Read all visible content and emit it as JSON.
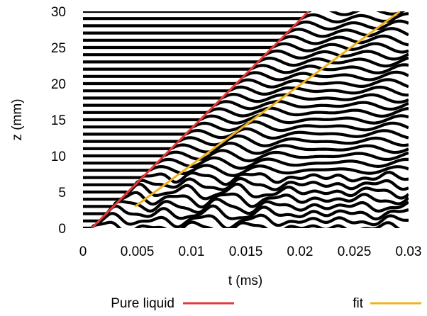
{
  "chart_data": {
    "type": "line",
    "title": "",
    "xlabel": "t (ms)",
    "ylabel": "z (mm)",
    "xlim": [
      0,
      0.03
    ],
    "ylim": [
      0,
      30
    ],
    "x_ticks": [
      "0",
      "0.005",
      "0.01",
      "0.015",
      "0.02",
      "0.025",
      "0.03"
    ],
    "y_ticks": [
      "0",
      "5",
      "10",
      "15",
      "20",
      "25",
      "30"
    ],
    "grid": false,
    "legend_position": "bottom",
    "background_traces": {
      "description_color": "#000000",
      "baseline_z_values": [
        0,
        1,
        2,
        3,
        4,
        5,
        6,
        7,
        8,
        9,
        10,
        11,
        12,
        13,
        14,
        15,
        16,
        17,
        18,
        19,
        20,
        21,
        22,
        23,
        24,
        25,
        26,
        27,
        28,
        29,
        30
      ]
    },
    "series": [
      {
        "name": "Pure liquid",
        "color": "#e03a3a",
        "x": [
          0.0008,
          0.0208
        ],
        "y": [
          0,
          30
        ]
      },
      {
        "name": "fit",
        "color": "#f0b21b",
        "x": [
          0.0048,
          0.0292
        ],
        "y": [
          3,
          30
        ]
      }
    ]
  }
}
